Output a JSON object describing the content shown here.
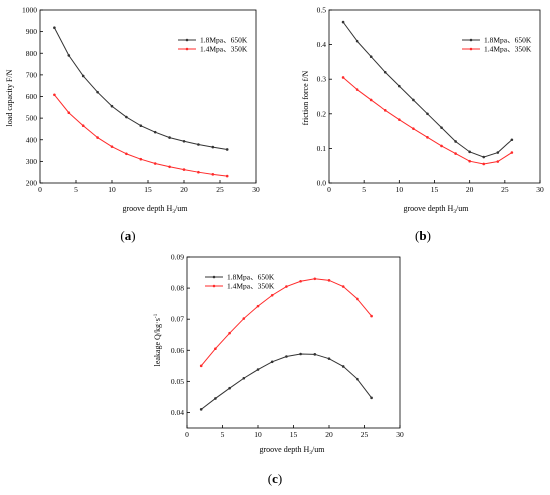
{
  "chart_data": [
    {
      "type": "line",
      "panel": "a",
      "xlabel_main": "groove depth H",
      "xlabel_sub": "3",
      "xlabel_unit": "/um",
      "ylabel": "load capacity F/N",
      "xlim": [
        0,
        30
      ],
      "ylim": [
        200,
        1000
      ],
      "xticks": [
        0,
        5,
        10,
        15,
        20,
        25,
        30
      ],
      "yticks": [
        200,
        300,
        400,
        500,
        600,
        700,
        800,
        900,
        1000
      ],
      "legend_position": "top-right",
      "x": [
        2,
        4,
        6,
        8,
        10,
        12,
        14,
        16,
        18,
        20,
        22,
        24,
        26
      ],
      "series": [
        {
          "name": "1.8Mpa、650K",
          "color": "#333333",
          "values": [
            918,
            790,
            695,
            620,
            555,
            505,
            465,
            435,
            410,
            393,
            378,
            366,
            355
          ]
        },
        {
          "name": "1.4Mpa、350K",
          "color": "#ff2a2a",
          "values": [
            608,
            525,
            465,
            410,
            368,
            335,
            310,
            290,
            275,
            262,
            250,
            240,
            232
          ]
        }
      ]
    },
    {
      "type": "line",
      "panel": "b",
      "xlabel_main": "groove depth H",
      "xlabel_sub": "3",
      "xlabel_unit": "/um",
      "ylabel": "friction force f/N",
      "xlim": [
        0,
        30
      ],
      "ylim": [
        0,
        0.5
      ],
      "xticks": [
        0,
        5,
        10,
        15,
        20,
        25,
        30
      ],
      "yticks": [
        0.0,
        0.1,
        0.2,
        0.3,
        0.4,
        0.5
      ],
      "ytick_labels": [
        "0.0",
        "0.1",
        "0.2",
        "0.3",
        "0.4",
        "0.5"
      ],
      "legend_position": "top-right",
      "x": [
        2,
        4,
        6,
        8,
        10,
        12,
        14,
        16,
        18,
        20,
        22,
        24,
        26
      ],
      "series": [
        {
          "name": "1.8Mpa、650K",
          "color": "#333333",
          "values": [
            0.465,
            0.41,
            0.365,
            0.32,
            0.28,
            0.24,
            0.2,
            0.16,
            0.12,
            0.09,
            0.075,
            0.088,
            0.125
          ]
        },
        {
          "name": "1.4Mpa、350K",
          "color": "#ff2a2a",
          "values": [
            0.305,
            0.27,
            0.24,
            0.21,
            0.183,
            0.157,
            0.132,
            0.107,
            0.085,
            0.063,
            0.055,
            0.062,
            0.088
          ]
        }
      ]
    },
    {
      "type": "line",
      "panel": "c",
      "xlabel_main": "groove depth H",
      "xlabel_sub": "3",
      "xlabel_unit": "/um",
      "ylabel": "leakage Q/kg·s",
      "ylabel_sup": "-1",
      "xlim": [
        0,
        30
      ],
      "ylim": [
        0.035,
        0.09
      ],
      "xticks": [
        0,
        5,
        10,
        15,
        20,
        25,
        30
      ],
      "yticks": [
        0.04,
        0.05,
        0.06,
        0.07,
        0.08,
        0.09
      ],
      "ytick_labels": [
        "0.04",
        "0.05",
        "0.06",
        "0.07",
        "0.08",
        "0.09"
      ],
      "legend_position": "top-left",
      "x": [
        2,
        4,
        6,
        8,
        10,
        12,
        14,
        16,
        18,
        20,
        22,
        24,
        26
      ],
      "series": [
        {
          "name": "1.8Mpa、650K",
          "color": "#333333",
          "values": [
            0.041,
            0.0445,
            0.0478,
            0.051,
            0.0538,
            0.0563,
            0.058,
            0.0588,
            0.0587,
            0.0573,
            0.0548,
            0.0507,
            0.0447
          ]
        },
        {
          "name": "1.4Mpa、350K",
          "color": "#ff2a2a",
          "values": [
            0.055,
            0.0605,
            0.0655,
            0.0702,
            0.0742,
            0.0777,
            0.0805,
            0.0822,
            0.083,
            0.0825,
            0.0805,
            0.0765,
            0.071
          ]
        }
      ]
    }
  ],
  "panel_labels": [
    {
      "open": "(",
      "letter": "a",
      "close": ")"
    },
    {
      "open": "(",
      "letter": "b",
      "close": ")"
    },
    {
      "open": "(",
      "letter": "c",
      "close": ")"
    }
  ]
}
